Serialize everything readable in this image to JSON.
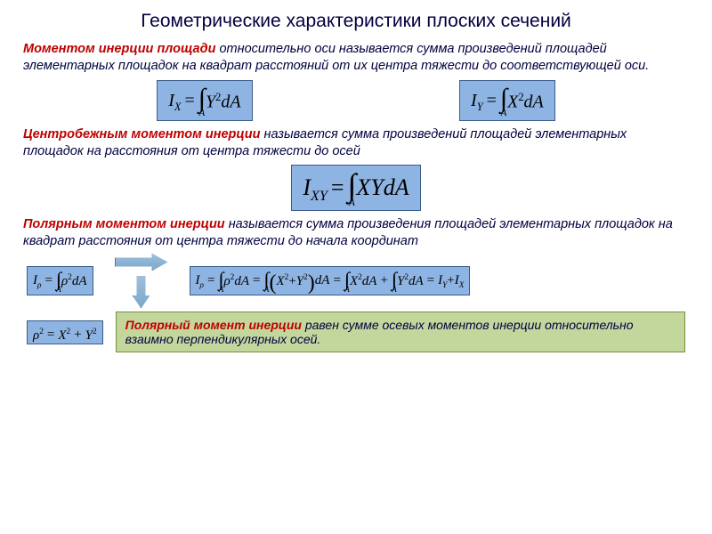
{
  "title": "Геометрические характеристики плоских сечений",
  "p1": {
    "term": "Моментом инерции площади",
    "rest": " относительно оси называется сумма произведений площадей элементарных площадок на квадрат расстояний от их центра тяжести до соответствующей оси."
  },
  "p2": {
    "term": "Центробежным моментом инерции",
    "rest": " называется сумма произведений площадей элементарных площадок на расстояния от центра тяжести до осей"
  },
  "p3": {
    "term": "Полярным моментом инерции",
    "rest": " называется сумма произведения площадей элементарных площадок на квадрат расстояния от центра тяжести до начала координат"
  },
  "p4": {
    "term": "Полярный момент инерции",
    "rest": " равен сумме осевых моментов инерции относительно взаимно перпендикулярных осей."
  },
  "formulas": {
    "ix": {
      "lhs_base": "I",
      "lhs_sub": "X",
      "var": "Y",
      "sup": "2",
      "d": "dA",
      "low": "A"
    },
    "iy": {
      "lhs_base": "I",
      "lhs_sub": "Y",
      "var": "X",
      "sup": "2",
      "d": "dA",
      "low": "A"
    },
    "ixy": {
      "lhs_base": "I",
      "lhs_sub": "XY",
      "vars": "XYdA",
      "low": "A"
    },
    "irho": {
      "lhs_base": "I",
      "lhs_sub": "ρ",
      "var": "ρ",
      "sup": "2",
      "d": "dA",
      "low": "A"
    },
    "rho2": {
      "lhs": "ρ",
      "sup": "2",
      "eq": "=",
      "r1": "X",
      "r1s": "2",
      "plus": "+",
      "r2": "Y",
      "r2s": "2"
    },
    "expand": {
      "lhs_base": "I",
      "lhs_sub": "ρ",
      "t1": "ρ",
      "t1s": "2",
      "t1d": "dA",
      "t2a": "X",
      "t2as": "2",
      "t2p": "+",
      "t2b": "Y",
      "t2bs": "2",
      "t2d": "dA",
      "t3": "X",
      "t3s": "2",
      "t3d": "dA",
      "t3p": "+",
      "t4": "Y",
      "t4s": "2",
      "t4d": "dA",
      "res1b": "I",
      "res1s": "Y",
      "resplus": "+",
      "res2b": "I",
      "res2s": "X",
      "low": "A"
    }
  },
  "style": {
    "title_color": "#000040",
    "term_color": "#c00000",
    "formula_bg": "#8eb4e3",
    "formula_border": "#3a5b8a",
    "green_bg": "#c3d69b",
    "green_border": "#76923c",
    "page_bg": "#ffffff"
  }
}
